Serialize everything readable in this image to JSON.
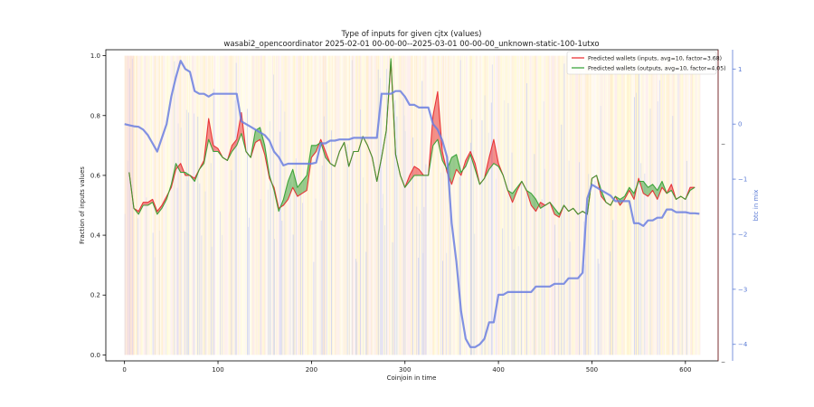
{
  "title_line1": "Type of inputs for given cjtx (values)",
  "title_line2": "wasabi2_opencoordinator 2025-02-01 00-00-00--2025-03-01 00-00-00_unknown-static-100-1utxo",
  "xlabel": "Coinjoin in time",
  "ylabel_left": "Fraction of inputs values",
  "ylabel_right": "btc in mix",
  "colors": {
    "inputs_line": "#e8262b",
    "outputs_line": "#2f9e2f",
    "btc_line": "#6b7fe0",
    "right_axis": "#5b7bd5",
    "band_pink": "#f7c9c6",
    "band_orange": "#ffd27a",
    "band_yellow": "#fff08a",
    "band_blue": "#b8c2f5"
  },
  "chart_data": {
    "type": "line",
    "xlim": [
      -20,
      635
    ],
    "ylim": [
      -0.02,
      1.02
    ],
    "ylim_right": [
      -4.3,
      1.35
    ],
    "x_ticks": [
      "0",
      "100",
      "200",
      "300",
      "400",
      "500",
      "600"
    ],
    "y_ticks": [
      "0.0",
      "0.2",
      "0.4",
      "0.6",
      "0.8",
      "1.0"
    ],
    "y_right_ticks": [
      "1",
      "0",
      "−1",
      "−2",
      "−3",
      "−4"
    ],
    "legend_position": "top-right",
    "series": [
      {
        "name": "Predicted wallets (inputs, avg=10, factor=3.68)",
        "color": "#e8262b",
        "x": [
          5,
          10,
          15,
          20,
          25,
          30,
          35,
          40,
          45,
          50,
          55,
          60,
          65,
          70,
          75,
          80,
          85,
          90,
          95,
          100,
          105,
          110,
          115,
          120,
          125,
          130,
          135,
          140,
          145,
          150,
          155,
          160,
          165,
          170,
          175,
          180,
          185,
          190,
          195,
          200,
          205,
          210,
          215,
          220,
          225,
          230,
          235,
          240,
          245,
          250,
          255,
          260,
          265,
          270,
          275,
          280,
          285,
          290,
          295,
          300,
          305,
          310,
          315,
          320,
          325,
          330,
          335,
          340,
          345,
          350,
          355,
          360,
          365,
          370,
          375,
          380,
          385,
          390,
          395,
          400,
          405,
          410,
          415,
          420,
          425,
          430,
          435,
          440,
          445,
          450,
          455,
          460,
          465,
          470,
          475,
          480,
          485,
          490,
          495,
          500,
          505,
          510,
          515,
          520,
          525,
          530,
          535,
          540,
          545,
          550,
          555,
          560,
          565,
          570,
          575,
          580,
          585,
          590,
          595,
          600,
          605,
          610
        ],
        "y": [
          0.61,
          0.49,
          0.48,
          0.51,
          0.51,
          0.52,
          0.48,
          0.5,
          0.53,
          0.56,
          0.62,
          0.64,
          0.6,
          0.6,
          0.59,
          0.62,
          0.65,
          0.79,
          0.7,
          0.69,
          0.66,
          0.65,
          0.7,
          0.72,
          0.81,
          0.68,
          0.66,
          0.71,
          0.72,
          0.67,
          0.59,
          0.56,
          0.49,
          0.5,
          0.52,
          0.56,
          0.53,
          0.54,
          0.55,
          0.66,
          0.68,
          0.72,
          0.68,
          0.64,
          0.63,
          0.68,
          0.71,
          0.63,
          0.68,
          0.68,
          0.73,
          0.7,
          0.66,
          0.58,
          0.66,
          0.75,
          0.98,
          0.67,
          0.6,
          0.56,
          0.6,
          0.63,
          0.62,
          0.6,
          0.6,
          0.8,
          0.88,
          0.68,
          0.61,
          0.57,
          0.62,
          0.6,
          0.65,
          0.68,
          0.64,
          0.57,
          0.59,
          0.66,
          0.72,
          0.64,
          0.6,
          0.55,
          0.51,
          0.55,
          0.58,
          0.55,
          0.5,
          0.48,
          0.51,
          0.5,
          0.51,
          0.47,
          0.46,
          0.5,
          0.48,
          0.49,
          0.47,
          0.48,
          0.47,
          0.59,
          0.6,
          0.53,
          0.51,
          0.5,
          0.53,
          0.5,
          0.52,
          0.55,
          0.52,
          0.59,
          0.54,
          0.53,
          0.55,
          0.52,
          0.56,
          0.54,
          0.57,
          0.52,
          0.53,
          0.52,
          0.56,
          0.56
        ]
      },
      {
        "name": "Predicted wallets (outputs, avg=10, factor=4.05)",
        "color": "#2f9e2f",
        "x": [
          5,
          10,
          15,
          20,
          25,
          30,
          35,
          40,
          45,
          50,
          55,
          60,
          65,
          70,
          75,
          80,
          85,
          90,
          95,
          100,
          105,
          110,
          115,
          120,
          125,
          130,
          135,
          140,
          145,
          150,
          155,
          160,
          165,
          170,
          175,
          180,
          185,
          190,
          195,
          200,
          205,
          210,
          215,
          220,
          225,
          230,
          235,
          240,
          245,
          250,
          255,
          260,
          265,
          270,
          275,
          280,
          285,
          290,
          295,
          300,
          305,
          310,
          315,
          320,
          325,
          330,
          335,
          340,
          345,
          350,
          355,
          360,
          365,
          370,
          375,
          380,
          385,
          390,
          395,
          400,
          405,
          410,
          415,
          420,
          425,
          430,
          435,
          440,
          445,
          450,
          455,
          460,
          465,
          470,
          475,
          480,
          485,
          490,
          495,
          500,
          505,
          510,
          515,
          520,
          525,
          530,
          535,
          540,
          545,
          550,
          555,
          560,
          565,
          570,
          575,
          580,
          585,
          590,
          595,
          600,
          605,
          610
        ],
        "y": [
          0.61,
          0.49,
          0.47,
          0.5,
          0.5,
          0.51,
          0.47,
          0.49,
          0.52,
          0.57,
          0.64,
          0.61,
          0.61,
          0.6,
          0.58,
          0.62,
          0.64,
          0.72,
          0.68,
          0.68,
          0.66,
          0.65,
          0.68,
          0.7,
          0.74,
          0.68,
          0.66,
          0.75,
          0.76,
          0.7,
          0.6,
          0.55,
          0.48,
          0.52,
          0.58,
          0.62,
          0.56,
          0.58,
          0.6,
          0.7,
          0.7,
          0.71,
          0.66,
          0.64,
          0.63,
          0.68,
          0.71,
          0.63,
          0.68,
          0.68,
          0.73,
          0.7,
          0.66,
          0.58,
          0.66,
          0.75,
          0.99,
          0.67,
          0.6,
          0.56,
          0.58,
          0.6,
          0.6,
          0.6,
          0.6,
          0.7,
          0.72,
          0.65,
          0.62,
          0.66,
          0.67,
          0.61,
          0.63,
          0.67,
          0.62,
          0.57,
          0.59,
          0.62,
          0.64,
          0.63,
          0.6,
          0.55,
          0.54,
          0.56,
          0.58,
          0.55,
          0.54,
          0.52,
          0.49,
          0.5,
          0.51,
          0.49,
          0.47,
          0.5,
          0.48,
          0.49,
          0.47,
          0.48,
          0.47,
          0.59,
          0.6,
          0.55,
          0.51,
          0.5,
          0.53,
          0.52,
          0.53,
          0.56,
          0.54,
          0.58,
          0.58,
          0.56,
          0.57,
          0.55,
          0.58,
          0.54,
          0.55,
          0.52,
          0.53,
          0.52,
          0.55,
          0.56
        ]
      },
      {
        "name": "btc in mix",
        "axis": "right",
        "color": "#6b7fe0",
        "x": [
          0,
          5,
          10,
          15,
          20,
          25,
          30,
          35,
          40,
          45,
          50,
          55,
          60,
          65,
          70,
          75,
          80,
          85,
          90,
          95,
          100,
          105,
          110,
          115,
          120,
          125,
          130,
          135,
          140,
          145,
          150,
          155,
          160,
          165,
          170,
          175,
          180,
          185,
          190,
          195,
          200,
          205,
          210,
          215,
          220,
          225,
          230,
          235,
          240,
          245,
          250,
          255,
          260,
          265,
          270,
          275,
          280,
          285,
          290,
          295,
          300,
          305,
          310,
          315,
          320,
          325,
          330,
          335,
          340,
          345,
          350,
          355,
          360,
          365,
          370,
          375,
          380,
          385,
          390,
          395,
          400,
          405,
          410,
          415,
          420,
          425,
          430,
          435,
          440,
          445,
          450,
          455,
          460,
          465,
          470,
          475,
          480,
          485,
          490,
          495,
          500,
          505,
          510,
          515,
          520,
          525,
          530,
          535,
          540,
          545,
          550,
          555,
          560,
          565,
          570,
          575,
          580,
          585,
          590,
          595,
          600,
          605,
          610,
          615
        ],
        "y": [
          0.0,
          -0.02,
          -0.04,
          -0.05,
          -0.1,
          -0.2,
          -0.35,
          -0.5,
          -0.25,
          0.0,
          0.5,
          0.85,
          1.15,
          1.0,
          0.95,
          0.6,
          0.55,
          0.55,
          0.5,
          0.55,
          0.55,
          0.55,
          0.55,
          0.55,
          0.55,
          0.05,
          0.0,
          -0.05,
          -0.1,
          -0.15,
          -0.2,
          -0.3,
          -0.5,
          -0.6,
          -0.75,
          -0.72,
          -0.72,
          -0.72,
          -0.72,
          -0.72,
          -0.72,
          -0.7,
          -0.35,
          -0.35,
          -0.3,
          -0.3,
          -0.28,
          -0.28,
          -0.28,
          -0.25,
          -0.25,
          -0.25,
          -0.25,
          -0.25,
          -0.25,
          0.55,
          0.55,
          0.55,
          0.6,
          0.6,
          0.5,
          0.35,
          0.35,
          0.3,
          0.3,
          0.3,
          0.0,
          -0.1,
          -0.3,
          -0.6,
          -1.8,
          -2.5,
          -3.4,
          -3.9,
          -4.05,
          -4.05,
          -4.0,
          -3.9,
          -3.6,
          -3.6,
          -3.1,
          -3.1,
          -3.05,
          -3.05,
          -3.05,
          -3.05,
          -3.05,
          -3.05,
          -2.95,
          -2.95,
          -2.95,
          -2.95,
          -2.9,
          -2.9,
          -2.9,
          -2.8,
          -2.8,
          -2.8,
          -2.7,
          -1.35,
          -1.1,
          -1.15,
          -1.2,
          -1.25,
          -1.3,
          -1.4,
          -1.4,
          -1.4,
          -1.4,
          -1.8,
          -1.8,
          -1.85,
          -1.75,
          -1.75,
          -1.7,
          -1.7,
          -1.55,
          -1.55,
          -1.6,
          -1.6,
          -1.6,
          -1.62,
          -1.62,
          -1.63
        ]
      }
    ]
  }
}
